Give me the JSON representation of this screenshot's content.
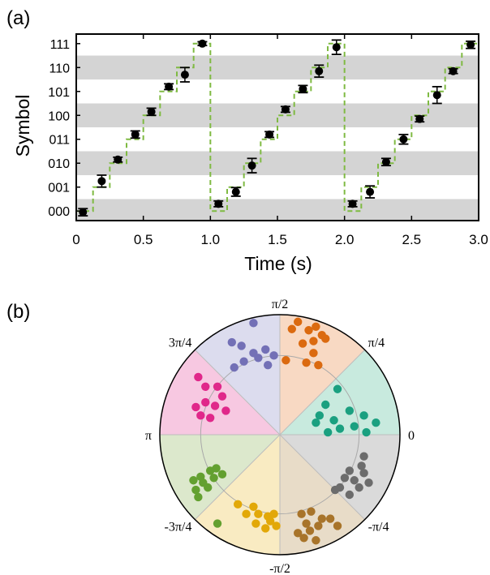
{
  "chart_data": [
    {
      "panel_label": "(a)",
      "type": "scatter",
      "xlabel": "Time (s)",
      "ylabel": "Symbol",
      "xlim": [
        0,
        3.0
      ],
      "xticks": [
        "0",
        "0.5",
        "1.0",
        "1.5",
        "2.0",
        "2.5",
        "3.0"
      ],
      "xtick_values": [
        0,
        0.5,
        1.0,
        1.5,
        2.0,
        2.5,
        3.0
      ],
      "yticks": [
        "000",
        "001",
        "010",
        "011",
        "100",
        "101",
        "110",
        "111"
      ],
      "ylim": [
        -0.4,
        7.4
      ],
      "alternating_bands": true,
      "series": [
        {
          "marker": "circle-with-errorbar",
          "color": "#000000",
          "points": [
            {
              "x": 0.05,
              "y": -0.05,
              "err": 0.15
            },
            {
              "x": 0.19,
              "y": 1.25,
              "err": 0.25
            },
            {
              "x": 0.31,
              "y": 2.15,
              "err": 0.1
            },
            {
              "x": 0.44,
              "y": 3.2,
              "err": 0.15
            },
            {
              "x": 0.56,
              "y": 4.15,
              "err": 0.15
            },
            {
              "x": 0.69,
              "y": 5.2,
              "err": 0.12
            },
            {
              "x": 0.81,
              "y": 5.7,
              "err": 0.3
            },
            {
              "x": 0.94,
              "y": 7.0,
              "err": 0.08
            },
            {
              "x": 1.06,
              "y": 0.3,
              "err": 0.12
            },
            {
              "x": 1.19,
              "y": 0.8,
              "err": 0.18
            },
            {
              "x": 1.31,
              "y": 1.9,
              "err": 0.3
            },
            {
              "x": 1.44,
              "y": 3.2,
              "err": 0.12
            },
            {
              "x": 1.56,
              "y": 4.25,
              "err": 0.12
            },
            {
              "x": 1.69,
              "y": 5.1,
              "err": 0.15
            },
            {
              "x": 1.81,
              "y": 5.85,
              "err": 0.25
            },
            {
              "x": 1.94,
              "y": 6.85,
              "err": 0.3
            },
            {
              "x": 2.06,
              "y": 0.3,
              "err": 0.12
            },
            {
              "x": 2.19,
              "y": 0.8,
              "err": 0.25
            },
            {
              "x": 2.31,
              "y": 2.05,
              "err": 0.15
            },
            {
              "x": 2.44,
              "y": 3.0,
              "err": 0.2
            },
            {
              "x": 2.56,
              "y": 3.85,
              "err": 0.12
            },
            {
              "x": 2.69,
              "y": 4.85,
              "err": 0.35
            },
            {
              "x": 2.81,
              "y": 5.85,
              "err": 0.1
            },
            {
              "x": 2.94,
              "y": 6.95,
              "err": 0.15
            }
          ]
        }
      ],
      "reference_staircase": {
        "style": "dashed",
        "color": "#7fba42",
        "step_duration": 0.125,
        "period": 1.0,
        "levels": [
          0,
          1,
          2,
          3,
          4,
          5,
          6,
          7
        ]
      }
    },
    {
      "panel_label": "(b)",
      "type": "scatter",
      "coordinate_system": "polar",
      "angle_labels": [
        {
          "label": "0",
          "angle_deg": 0
        },
        {
          "label": "π/4",
          "angle_deg": 45
        },
        {
          "label": "π/2",
          "angle_deg": 90
        },
        {
          "label": "3π/4",
          "angle_deg": 135
        },
        {
          "label": "π",
          "angle_deg": 180
        },
        {
          "label": "-3π/4",
          "angle_deg": 225
        },
        {
          "label": "-π/2",
          "angle_deg": 270
        },
        {
          "label": "-π/4",
          "angle_deg": 315
        }
      ],
      "reference_circle_radius": 0.66,
      "sectors": [
        {
          "start_deg": 0,
          "end_deg": 45,
          "fill": "#c8eade",
          "dot": "#1aa080"
        },
        {
          "start_deg": 45,
          "end_deg": 90,
          "fill": "#f8d9c3",
          "dot": "#db6a10"
        },
        {
          "start_deg": 90,
          "end_deg": 135,
          "fill": "#dcdcee",
          "dot": "#7370b6"
        },
        {
          "start_deg": 135,
          "end_deg": 180,
          "fill": "#f7c8e1",
          "dot": "#e0288a"
        },
        {
          "start_deg": 180,
          "end_deg": 225,
          "fill": "#dce8cc",
          "dot": "#63a030"
        },
        {
          "start_deg": 225,
          "end_deg": 270,
          "fill": "#f9ebc2",
          "dot": "#e2a808"
        },
        {
          "start_deg": 270,
          "end_deg": 315,
          "fill": "#e8dcc8",
          "dot": "#a8742a"
        },
        {
          "start_deg": 315,
          "end_deg": 360,
          "fill": "#dadada",
          "dot": "#6c6c6c"
        }
      ],
      "clusters": [
        {
          "color": "#1aa080",
          "points": [
            [
              0.48,
              0.38
            ],
            [
              0.38,
              0.25
            ],
            [
              0.58,
              0.2
            ],
            [
              0.7,
              0.16
            ],
            [
              0.45,
              0.12
            ],
            [
              0.3,
              0.1
            ],
            [
              0.62,
              0.07
            ],
            [
              0.5,
              0.05
            ],
            [
              0.8,
              0.1
            ],
            [
              0.4,
              0.02
            ],
            [
              0.72,
              0.02
            ],
            [
              0.33,
              0.16
            ]
          ]
        },
        {
          "color": "#db6a10",
          "points": [
            [
              0.15,
              0.94
            ],
            [
              0.24,
              0.87
            ],
            [
              0.3,
              0.9
            ],
            [
              0.1,
              0.88
            ],
            [
              0.35,
              0.83
            ],
            [
              0.19,
              0.76
            ],
            [
              0.28,
              0.78
            ],
            [
              0.38,
              0.8
            ],
            [
              0.05,
              0.62
            ],
            [
              0.28,
              0.68
            ],
            [
              0.32,
              0.58
            ],
            [
              0.22,
              0.6
            ]
          ]
        },
        {
          "color": "#7370b6",
          "points": [
            [
              -0.22,
              0.93
            ],
            [
              -0.4,
              0.77
            ],
            [
              -0.32,
              0.74
            ],
            [
              -0.12,
              0.71
            ],
            [
              -0.22,
              0.68
            ],
            [
              -0.3,
              0.61
            ],
            [
              -0.1,
              0.58
            ],
            [
              -0.18,
              0.64
            ],
            [
              -0.05,
              0.66
            ],
            [
              -0.38,
              0.56
            ]
          ]
        },
        {
          "color": "#e0288a",
          "points": [
            [
              -0.68,
              0.48
            ],
            [
              -0.62,
              0.4
            ],
            [
              -0.52,
              0.4
            ],
            [
              -0.48,
              0.32
            ],
            [
              -0.62,
              0.27
            ],
            [
              -0.54,
              0.24
            ],
            [
              -0.7,
              0.23
            ],
            [
              -0.58,
              0.14
            ],
            [
              -0.66,
              0.16
            ],
            [
              -0.45,
              0.2
            ]
          ]
        },
        {
          "color": "#63a030",
          "points": [
            [
              -0.66,
              -0.35
            ],
            [
              -0.58,
              -0.3
            ],
            [
              -0.53,
              -0.28
            ],
            [
              -0.64,
              -0.4
            ],
            [
              -0.55,
              -0.36
            ],
            [
              -0.6,
              -0.44
            ],
            [
              -0.7,
              -0.46
            ],
            [
              -0.72,
              -0.38
            ],
            [
              -0.68,
              -0.52
            ],
            [
              -0.48,
              -0.33
            ]
          ]
        },
        {
          "color": "#e2a808",
          "points": [
            [
              -0.35,
              -0.58
            ],
            [
              -0.22,
              -0.6
            ],
            [
              -0.18,
              -0.66
            ],
            [
              -0.1,
              -0.68
            ],
            [
              -0.05,
              -0.66
            ],
            [
              -0.2,
              -0.74
            ],
            [
              -0.12,
              -0.78
            ],
            [
              -0.03,
              -0.76
            ],
            [
              -0.28,
              -0.66
            ],
            [
              -0.08,
              -0.72
            ]
          ]
        },
        {
          "color": "#a8742a",
          "points": [
            [
              0.18,
              -0.66
            ],
            [
              0.26,
              -0.64
            ],
            [
              0.35,
              -0.7
            ],
            [
              0.42,
              -0.7
            ],
            [
              0.22,
              -0.74
            ],
            [
              0.32,
              -0.76
            ],
            [
              0.48,
              -0.76
            ],
            [
              0.25,
              -0.8
            ],
            [
              0.2,
              -0.86
            ],
            [
              0.3,
              -0.88
            ],
            [
              0.15,
              -0.82
            ]
          ]
        },
        {
          "color": "#6c6c6c",
          "points": [
            [
              0.7,
              -0.18
            ],
            [
              0.68,
              -0.26
            ],
            [
              0.58,
              -0.3
            ],
            [
              0.7,
              -0.32
            ],
            [
              0.62,
              -0.38
            ],
            [
              0.54,
              -0.36
            ],
            [
              0.66,
              -0.44
            ],
            [
              0.5,
              -0.44
            ],
            [
              0.58,
              -0.5
            ],
            [
              0.74,
              -0.4
            ],
            [
              0.46,
              -0.46
            ]
          ]
        }
      ],
      "stray_points": [
        {
          "x": -0.52,
          "y": -0.74,
          "color": "#63a030"
        }
      ]
    }
  ]
}
